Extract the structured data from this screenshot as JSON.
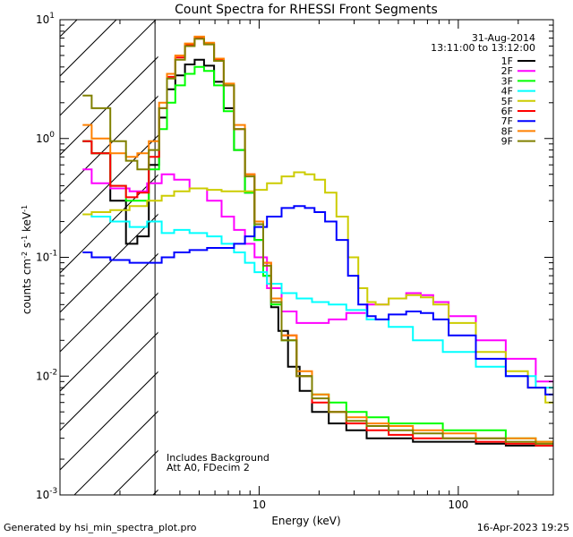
{
  "footer": {
    "left": "Generated by hsi_min_spectra_plot.pro",
    "right": "16-Apr-2023 19:25"
  },
  "chart_data": {
    "type": "line",
    "title": "Count Spectra for RHESSI Front Segments",
    "xlabel": "Energy (keV)",
    "ylabel": "counts cm-2 s-1 keV-1",
    "xscale": "log",
    "yscale": "log",
    "xlim": [
      1,
      300
    ],
    "ylim": [
      0.001,
      10
    ],
    "x_ticks": [
      {
        "value": 10,
        "label": "10"
      },
      {
        "value": 100,
        "label": "100"
      }
    ],
    "y_ticks": [
      {
        "value": 0.001,
        "label": "10",
        "exp": "-3"
      },
      {
        "value": 0.01,
        "label": "10",
        "exp": "-2"
      },
      {
        "value": 0.1,
        "label": "10",
        "exp": "-1"
      },
      {
        "value": 1,
        "label": "10",
        "exp": "0"
      },
      {
        "value": 10,
        "label": "10",
        "exp": "1"
      }
    ],
    "date": "31-Aug-2014",
    "time_range": "13:11:00 to 13:12:00",
    "annotations": [
      "Includes Background",
      "Att A0, FDecim 2"
    ],
    "shaded_region_x": [
      1,
      3
    ],
    "legend_position": "top-right",
    "series": [
      {
        "name": "1F",
        "color": "#000000",
        "points": [
          [
            1.3,
            0.95
          ],
          [
            1.6,
            0.75
          ],
          [
            2.0,
            0.3
          ],
          [
            2.3,
            0.13
          ],
          [
            2.6,
            0.15
          ],
          [
            3.0,
            0.6
          ],
          [
            3.3,
            1.5
          ],
          [
            3.6,
            2.6
          ],
          [
            4.0,
            3.4
          ],
          [
            4.5,
            4.2
          ],
          [
            5.0,
            4.6
          ],
          [
            5.6,
            4.1
          ],
          [
            6.3,
            3.0
          ],
          [
            7.0,
            1.8
          ],
          [
            8.0,
            0.8
          ],
          [
            9.0,
            0.35
          ],
          [
            10,
            0.14
          ],
          [
            11,
            0.07
          ],
          [
            12,
            0.038
          ],
          [
            13,
            0.024
          ],
          [
            15,
            0.012
          ],
          [
            17,
            0.0075
          ],
          [
            20,
            0.005
          ],
          [
            25,
            0.004
          ],
          [
            30,
            0.0035
          ],
          [
            40,
            0.003
          ],
          [
            50,
            0.003
          ],
          [
            70,
            0.0028
          ],
          [
            100,
            0.0028
          ],
          [
            150,
            0.0027
          ],
          [
            200,
            0.0026
          ],
          [
            300,
            0.0026
          ]
        ]
      },
      {
        "name": "2F",
        "color": "#ff00ff",
        "points": [
          [
            1.3,
            0.55
          ],
          [
            1.6,
            0.42
          ],
          [
            2.0,
            0.38
          ],
          [
            2.5,
            0.36
          ],
          [
            3.0,
            0.42
          ],
          [
            3.5,
            0.5
          ],
          [
            4.0,
            0.45
          ],
          [
            5.0,
            0.38
          ],
          [
            6.0,
            0.3
          ],
          [
            7.0,
            0.22
          ],
          [
            8.0,
            0.17
          ],
          [
            9.0,
            0.13
          ],
          [
            10,
            0.1
          ],
          [
            12,
            0.055
          ],
          [
            14,
            0.035
          ],
          [
            17,
            0.028
          ],
          [
            20,
            0.028
          ],
          [
            25,
            0.03
          ],
          [
            30,
            0.034
          ],
          [
            40,
            0.04
          ],
          [
            50,
            0.045
          ],
          [
            60,
            0.05
          ],
          [
            70,
            0.048
          ],
          [
            80,
            0.042
          ],
          [
            100,
            0.032
          ],
          [
            150,
            0.02
          ],
          [
            200,
            0.014
          ],
          [
            300,
            0.009
          ]
        ]
      },
      {
        "name": "3F",
        "color": "#00ff00",
        "points": [
          [
            1.3,
            0.95
          ],
          [
            1.6,
            0.75
          ],
          [
            2.0,
            0.4
          ],
          [
            2.3,
            0.3
          ],
          [
            2.6,
            0.3
          ],
          [
            3.0,
            0.55
          ],
          [
            3.3,
            1.2
          ],
          [
            3.6,
            2.0
          ],
          [
            4.0,
            2.8
          ],
          [
            4.5,
            3.5
          ],
          [
            5.0,
            4.0
          ],
          [
            5.6,
            3.7
          ],
          [
            6.3,
            2.8
          ],
          [
            7.0,
            1.7
          ],
          [
            8.0,
            0.8
          ],
          [
            9.0,
            0.35
          ],
          [
            10,
            0.14
          ],
          [
            11,
            0.07
          ],
          [
            12,
            0.04
          ],
          [
            14,
            0.02
          ],
          [
            17,
            0.01
          ],
          [
            20,
            0.007
          ],
          [
            25,
            0.006
          ],
          [
            30,
            0.005
          ],
          [
            40,
            0.0045
          ],
          [
            50,
            0.004
          ],
          [
            70,
            0.004
          ],
          [
            100,
            0.0035
          ],
          [
            150,
            0.0035
          ],
          [
            200,
            0.003
          ],
          [
            300,
            0.0028
          ]
        ]
      },
      {
        "name": "4F",
        "color": "#00ffff",
        "points": [
          [
            1.3,
            0.23
          ],
          [
            1.6,
            0.22
          ],
          [
            2.0,
            0.2
          ],
          [
            2.5,
            0.18
          ],
          [
            3.0,
            0.2
          ],
          [
            3.5,
            0.16
          ],
          [
            4.0,
            0.17
          ],
          [
            5.0,
            0.16
          ],
          [
            6.0,
            0.15
          ],
          [
            7.0,
            0.13
          ],
          [
            8.0,
            0.11
          ],
          [
            9.0,
            0.09
          ],
          [
            10,
            0.075
          ],
          [
            12,
            0.06
          ],
          [
            14,
            0.05
          ],
          [
            17,
            0.045
          ],
          [
            20,
            0.042
          ],
          [
            25,
            0.04
          ],
          [
            30,
            0.036
          ],
          [
            40,
            0.03
          ],
          [
            50,
            0.026
          ],
          [
            70,
            0.02
          ],
          [
            100,
            0.016
          ],
          [
            150,
            0.012
          ],
          [
            200,
            0.01
          ],
          [
            300,
            0.008
          ]
        ]
      },
      {
        "name": "5F",
        "color": "#cccc00",
        "points": [
          [
            1.3,
            0.23
          ],
          [
            1.6,
            0.24
          ],
          [
            2.0,
            0.25
          ],
          [
            2.5,
            0.27
          ],
          [
            3.0,
            0.3
          ],
          [
            3.5,
            0.33
          ],
          [
            4.0,
            0.36
          ],
          [
            5.0,
            0.38
          ],
          [
            6.0,
            0.37
          ],
          [
            7.0,
            0.36
          ],
          [
            8.0,
            0.36
          ],
          [
            9.0,
            0.36
          ],
          [
            10,
            0.37
          ],
          [
            12,
            0.42
          ],
          [
            14,
            0.48
          ],
          [
            16,
            0.52
          ],
          [
            18,
            0.5
          ],
          [
            20,
            0.45
          ],
          [
            23,
            0.35
          ],
          [
            26,
            0.22
          ],
          [
            30,
            0.1
          ],
          [
            33,
            0.055
          ],
          [
            37,
            0.042
          ],
          [
            40,
            0.04
          ],
          [
            50,
            0.045
          ],
          [
            60,
            0.048
          ],
          [
            70,
            0.046
          ],
          [
            80,
            0.04
          ],
          [
            100,
            0.028
          ],
          [
            150,
            0.016
          ],
          [
            200,
            0.011
          ],
          [
            250,
            0.008
          ],
          [
            300,
            0.006
          ]
        ]
      },
      {
        "name": "6F",
        "color": "#ff0000",
        "points": [
          [
            1.3,
            0.95
          ],
          [
            1.6,
            0.75
          ],
          [
            2.0,
            0.4
          ],
          [
            2.3,
            0.32
          ],
          [
            2.6,
            0.35
          ],
          [
            3.0,
            0.7
          ],
          [
            3.3,
            1.8
          ],
          [
            3.6,
            3.3
          ],
          [
            4.0,
            4.8
          ],
          [
            4.5,
            6.2
          ],
          [
            5.0,
            7.0
          ],
          [
            5.6,
            6.3
          ],
          [
            6.3,
            4.6
          ],
          [
            7.0,
            2.8
          ],
          [
            8.0,
            1.2
          ],
          [
            9.0,
            0.5
          ],
          [
            10,
            0.2
          ],
          [
            11,
            0.09
          ],
          [
            12,
            0.045
          ],
          [
            14,
            0.022
          ],
          [
            17,
            0.01
          ],
          [
            20,
            0.006
          ],
          [
            25,
            0.005
          ],
          [
            30,
            0.004
          ],
          [
            40,
            0.0035
          ],
          [
            50,
            0.0032
          ],
          [
            70,
            0.003
          ],
          [
            100,
            0.003
          ],
          [
            150,
            0.0028
          ],
          [
            200,
            0.0027
          ],
          [
            300,
            0.0026
          ]
        ]
      },
      {
        "name": "7F",
        "color": "#0000ff",
        "points": [
          [
            1.3,
            0.11
          ],
          [
            1.6,
            0.1
          ],
          [
            2.0,
            0.095
          ],
          [
            2.5,
            0.09
          ],
          [
            3.0,
            0.09
          ],
          [
            3.5,
            0.1
          ],
          [
            4.0,
            0.11
          ],
          [
            5.0,
            0.115
          ],
          [
            6.0,
            0.12
          ],
          [
            7.0,
            0.12
          ],
          [
            8.0,
            0.13
          ],
          [
            9.0,
            0.15
          ],
          [
            10,
            0.18
          ],
          [
            12,
            0.22
          ],
          [
            14,
            0.26
          ],
          [
            16,
            0.27
          ],
          [
            18,
            0.26
          ],
          [
            20,
            0.24
          ],
          [
            23,
            0.2
          ],
          [
            26,
            0.14
          ],
          [
            30,
            0.07
          ],
          [
            33,
            0.04
          ],
          [
            37,
            0.032
          ],
          [
            40,
            0.03
          ],
          [
            50,
            0.033
          ],
          [
            60,
            0.035
          ],
          [
            70,
            0.034
          ],
          [
            80,
            0.03
          ],
          [
            100,
            0.022
          ],
          [
            150,
            0.014
          ],
          [
            200,
            0.01
          ],
          [
            250,
            0.008
          ],
          [
            300,
            0.007
          ]
        ]
      },
      {
        "name": "8F",
        "color": "#ff8000",
        "points": [
          [
            1.3,
            1.3
          ],
          [
            1.6,
            1.0
          ],
          [
            2.0,
            0.75
          ],
          [
            2.3,
            0.7
          ],
          [
            2.6,
            0.75
          ],
          [
            3.0,
            0.95
          ],
          [
            3.3,
            2.0
          ],
          [
            3.6,
            3.5
          ],
          [
            4.0,
            5.0
          ],
          [
            4.5,
            6.3
          ],
          [
            5.0,
            7.2
          ],
          [
            5.6,
            6.4
          ],
          [
            6.3,
            4.7
          ],
          [
            7.0,
            2.9
          ],
          [
            8.0,
            1.3
          ],
          [
            9.0,
            0.5
          ],
          [
            10,
            0.2
          ],
          [
            11,
            0.09
          ],
          [
            12,
            0.045
          ],
          [
            14,
            0.022
          ],
          [
            17,
            0.011
          ],
          [
            20,
            0.007
          ],
          [
            25,
            0.005
          ],
          [
            30,
            0.0045
          ],
          [
            40,
            0.004
          ],
          [
            50,
            0.0038
          ],
          [
            70,
            0.0035
          ],
          [
            100,
            0.0033
          ],
          [
            150,
            0.003
          ],
          [
            200,
            0.003
          ],
          [
            300,
            0.0028
          ]
        ]
      },
      {
        "name": "9F",
        "color": "#808000",
        "points": [
          [
            1.3,
            2.3
          ],
          [
            1.6,
            1.8
          ],
          [
            2.0,
            0.95
          ],
          [
            2.3,
            0.65
          ],
          [
            2.6,
            0.55
          ],
          [
            3.0,
            0.8
          ],
          [
            3.3,
            1.8
          ],
          [
            3.6,
            3.2
          ],
          [
            4.0,
            4.6
          ],
          [
            4.5,
            6.0
          ],
          [
            5.0,
            6.9
          ],
          [
            5.6,
            6.2
          ],
          [
            6.3,
            4.5
          ],
          [
            7.0,
            2.8
          ],
          [
            8.0,
            1.2
          ],
          [
            9.0,
            0.48
          ],
          [
            10,
            0.19
          ],
          [
            11,
            0.085
          ],
          [
            12,
            0.042
          ],
          [
            14,
            0.02
          ],
          [
            17,
            0.01
          ],
          [
            20,
            0.0065
          ],
          [
            25,
            0.005
          ],
          [
            30,
            0.0042
          ],
          [
            40,
            0.0038
          ],
          [
            50,
            0.0035
          ],
          [
            70,
            0.0033
          ],
          [
            100,
            0.003
          ],
          [
            150,
            0.003
          ],
          [
            200,
            0.0028
          ],
          [
            300,
            0.0027
          ]
        ]
      }
    ]
  }
}
